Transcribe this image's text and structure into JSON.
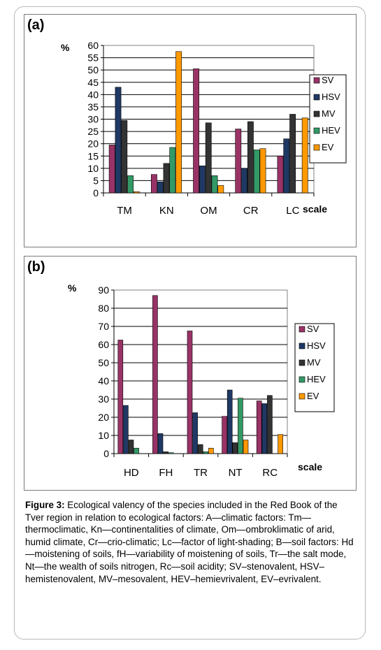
{
  "figure": {
    "caption_label": "Figure 3:",
    "caption_text": "Ecological valency of the species included in the Red Book of the Tver region in relation to ecological factors: A—climatic factors: Tm—thermoclimatic, Kn—continentalities of climate, Om—ombroklimatic of arid, humid climate, Cr—crio-climatic; Lc—factor of light-shading; B—soil factors: Hd—moistening of soils, fH—variability of moistening of soils, Tr—the salt mode, Nt—the wealth of soils nitrogen, Rc—soil acidity; SV–stenovalent, HSV– hemistenovalent, MV–mesovalent, HEV–hemievrivalent, EV–evrivalent."
  },
  "colors": {
    "SV": "#993366",
    "HSV": "#1f3864",
    "MV": "#333333",
    "HEV": "#339966",
    "EV": "#ff9900",
    "plot_bg": "#ffffff",
    "grid": "#000000"
  },
  "chart_data": [
    {
      "panel_label": "(a)",
      "type": "bar",
      "ylabel": "%",
      "xlabel": "scale",
      "ylim": [
        0,
        60
      ],
      "yticks": [
        0,
        5,
        10,
        15,
        20,
        25,
        30,
        35,
        40,
        45,
        50,
        55,
        60
      ],
      "categories": [
        "TM",
        "KN",
        "OM",
        "CR",
        "LC"
      ],
      "legend_position": "right",
      "series": [
        {
          "name": "SV",
          "values": [
            19.5,
            7.5,
            50.5,
            26,
            15
          ]
        },
        {
          "name": "HSV",
          "values": [
            43,
            4.5,
            11,
            10,
            22
          ]
        },
        {
          "name": "MV",
          "values": [
            29.5,
            12,
            28.5,
            29,
            32
          ]
        },
        {
          "name": "HEV",
          "values": [
            7,
            18.5,
            7,
            17.5,
            0
          ]
        },
        {
          "name": "EV",
          "values": [
            0.5,
            57.5,
            3,
            18,
            30.5
          ]
        }
      ]
    },
    {
      "panel_label": "(b)",
      "type": "bar",
      "ylabel": "%",
      "xlabel": "scale",
      "ylim": [
        0,
        90
      ],
      "yticks": [
        0,
        10,
        20,
        30,
        40,
        50,
        60,
        70,
        80,
        90
      ],
      "categories": [
        "HD",
        "FH",
        "TR",
        "NT",
        "RC"
      ],
      "legend_position": "right",
      "series": [
        {
          "name": "SV",
          "values": [
            62.5,
            87,
            67.5,
            20.5,
            29
          ]
        },
        {
          "name": "HSV",
          "values": [
            26.5,
            11,
            22.5,
            35,
            27.5
          ]
        },
        {
          "name": "MV",
          "values": [
            7.5,
            1,
            5,
            6,
            32
          ]
        },
        {
          "name": "HEV",
          "values": [
            3,
            0.5,
            1,
            30.5,
            0
          ]
        },
        {
          "name": "EV",
          "values": [
            0,
            0,
            3,
            7.5,
            10.5
          ]
        }
      ]
    }
  ]
}
